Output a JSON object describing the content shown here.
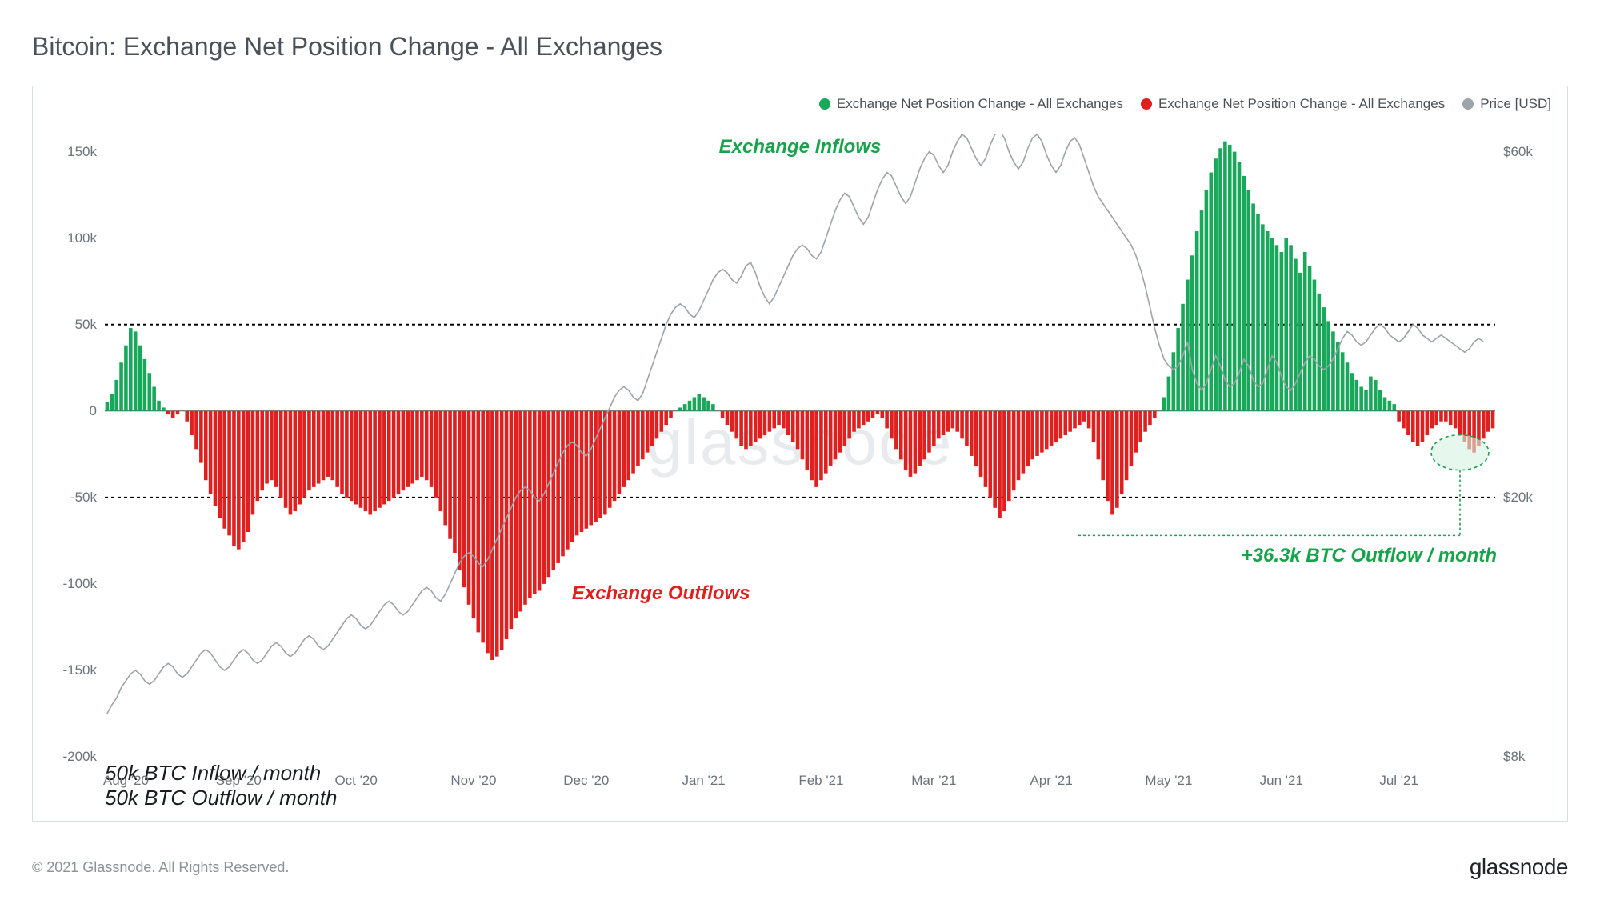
{
  "title": "Bitcoin: Exchange Net Position Change - All Exchanges",
  "copyright": "© 2021 Glassnode. All Rights Reserved.",
  "brand": "glassnode",
  "watermark": "glassnode",
  "legend": {
    "green": "Exchange Net Position Change - All Exchanges",
    "red": "Exchange Net Position Change - All Exchanges",
    "price": "Price [USD]"
  },
  "chart": {
    "type": "bar+line",
    "background_color": "#ffffff",
    "border_color": "#d8dde2",
    "bar_green": "#18a85a",
    "bar_red": "#e01f1f",
    "price_line_color": "#9ba3ab",
    "axis_text_color": "#6b737b",
    "dashed_line_color": "#000000",
    "left_axis": {
      "min": -200000,
      "max": 160000,
      "ticks": [
        {
          "v": -200000,
          "label": "-200k"
        },
        {
          "v": -150000,
          "label": "-150k"
        },
        {
          "v": -100000,
          "label": "-100k"
        },
        {
          "v": -50000,
          "label": "-50k"
        },
        {
          "v": 0,
          "label": "0"
        },
        {
          "v": 50000,
          "label": "50k"
        },
        {
          "v": 100000,
          "label": "100k"
        },
        {
          "v": 150000,
          "label": "150k"
        }
      ],
      "dashed_refs": [
        50000,
        -50000
      ]
    },
    "right_axis": {
      "ticks": [
        {
          "v": -200000,
          "label": "$8k"
        },
        {
          "v": -50000,
          "label": "$20k"
        },
        {
          "v": 150000,
          "label": "$60k"
        }
      ]
    },
    "x_labels": [
      "Aug '20",
      "Sep '20",
      "Oct '20",
      "Nov '20",
      "Dec '20",
      "Jan '21",
      "Feb '21",
      "Mar '21",
      "Apr '21",
      "May '21",
      "Jun '21",
      "Jul '21"
    ],
    "bars": [
      5,
      10,
      18,
      28,
      38,
      48,
      46,
      38,
      30,
      22,
      14,
      6,
      2,
      -2,
      -4,
      -2,
      0,
      -6,
      -14,
      -22,
      -30,
      -40,
      -48,
      -55,
      -62,
      -68,
      -72,
      -78,
      -80,
      -76,
      -70,
      -60,
      -52,
      -46,
      -42,
      -40,
      -44,
      -50,
      -56,
      -60,
      -58,
      -54,
      -50,
      -46,
      -44,
      -42,
      -40,
      -38,
      -40,
      -44,
      -48,
      -50,
      -52,
      -54,
      -56,
      -58,
      -60,
      -58,
      -56,
      -54,
      -52,
      -50,
      -48,
      -46,
      -44,
      -42,
      -40,
      -38,
      -40,
      -44,
      -50,
      -58,
      -66,
      -74,
      -82,
      -92,
      -102,
      -112,
      -120,
      -128,
      -134,
      -140,
      -144,
      -142,
      -138,
      -132,
      -126,
      -120,
      -116,
      -112,
      -108,
      -106,
      -104,
      -100,
      -96,
      -92,
      -88,
      -84,
      -80,
      -76,
      -72,
      -70,
      -68,
      -66,
      -64,
      -62,
      -60,
      -56,
      -52,
      -48,
      -44,
      -40,
      -36,
      -32,
      -28,
      -24,
      -20,
      -16,
      -12,
      -8,
      -4,
      0,
      2,
      4,
      6,
      8,
      10,
      8,
      6,
      4,
      0,
      -4,
      -8,
      -12,
      -16,
      -20,
      -22,
      -20,
      -18,
      -16,
      -14,
      -12,
      -10,
      -8,
      -10,
      -14,
      -18,
      -22,
      -28,
      -34,
      -40,
      -44,
      -40,
      -36,
      -32,
      -28,
      -24,
      -20,
      -16,
      -12,
      -10,
      -8,
      -6,
      -4,
      -2,
      -4,
      -10,
      -16,
      -22,
      -28,
      -34,
      -38,
      -36,
      -32,
      -28,
      -24,
      -20,
      -16,
      -14,
      -12,
      -10,
      -12,
      -16,
      -20,
      -26,
      -32,
      -38,
      -44,
      -50,
      -56,
      -62,
      -58,
      -52,
      -46,
      -40,
      -36,
      -32,
      -28,
      -26,
      -24,
      -22,
      -20,
      -18,
      -16,
      -14,
      -12,
      -10,
      -8,
      -6,
      -10,
      -18,
      -28,
      -40,
      -52,
      -60,
      -56,
      -48,
      -40,
      -32,
      -24,
      -18,
      -12,
      -8,
      -4,
      0,
      8,
      20,
      34,
      48,
      62,
      76,
      90,
      104,
      116,
      128,
      138,
      146,
      152,
      156,
      154,
      150,
      144,
      136,
      128,
      120,
      114,
      108,
      104,
      100,
      96,
      92,
      100,
      96,
      88,
      80,
      92,
      84,
      76,
      68,
      60,
      52,
      46,
      40,
      34,
      28,
      22,
      18,
      14,
      12,
      20,
      18,
      12,
      8,
      6,
      4,
      -6,
      -10,
      -14,
      -18,
      -20,
      -18,
      -14,
      -10,
      -8,
      -6,
      -6,
      -8,
      -10,
      -14,
      -18,
      -22,
      -24,
      -20,
      -16,
      -12,
      -10
    ],
    "price": [
      -175,
      -170,
      -166,
      -160,
      -156,
      -152,
      -150,
      -152,
      -156,
      -158,
      -156,
      -152,
      -148,
      -146,
      -148,
      -152,
      -154,
      -152,
      -148,
      -144,
      -140,
      -138,
      -140,
      -144,
      -148,
      -150,
      -148,
      -144,
      -140,
      -138,
      -140,
      -144,
      -146,
      -144,
      -140,
      -136,
      -134,
      -136,
      -140,
      -142,
      -140,
      -136,
      -132,
      -130,
      -132,
      -136,
      -138,
      -136,
      -132,
      -128,
      -124,
      -120,
      -118,
      -120,
      -124,
      -126,
      -124,
      -120,
      -116,
      -112,
      -110,
      -112,
      -116,
      -118,
      -116,
      -112,
      -108,
      -104,
      -102,
      -104,
      -108,
      -110,
      -106,
      -100,
      -94,
      -88,
      -84,
      -82,
      -84,
      -88,
      -90,
      -86,
      -80,
      -74,
      -68,
      -62,
      -56,
      -50,
      -46,
      -44,
      -46,
      -50,
      -52,
      -48,
      -42,
      -36,
      -30,
      -24,
      -20,
      -18,
      -20,
      -24,
      -26,
      -22,
      -16,
      -10,
      -4,
      2,
      8,
      12,
      14,
      12,
      8,
      6,
      10,
      18,
      26,
      34,
      42,
      50,
      56,
      60,
      62,
      60,
      56,
      54,
      58,
      64,
      70,
      76,
      80,
      82,
      80,
      76,
      74,
      78,
      84,
      86,
      80,
      72,
      66,
      62,
      66,
      72,
      78,
      84,
      90,
      94,
      96,
      94,
      90,
      88,
      92,
      100,
      108,
      116,
      122,
      126,
      124,
      118,
      112,
      108,
      112,
      120,
      128,
      134,
      138,
      136,
      130,
      124,
      120,
      124,
      132,
      140,
      146,
      150,
      148,
      142,
      138,
      142,
      150,
      156,
      160,
      158,
      152,
      146,
      142,
      146,
      154,
      160,
      162,
      158,
      150,
      144,
      140,
      144,
      152,
      158,
      160,
      156,
      148,
      142,
      138,
      142,
      150,
      156,
      158,
      154,
      146,
      138,
      130,
      124,
      120,
      116,
      112,
      108,
      104,
      100,
      96,
      90,
      82,
      72,
      60,
      48,
      38,
      30,
      26,
      24,
      26,
      32,
      40,
      24,
      16,
      12,
      16,
      24,
      32,
      26,
      18,
      14,
      16,
      22,
      30,
      26,
      18,
      14,
      16,
      24,
      32,
      28,
      20,
      14,
      12,
      16,
      22,
      28,
      32,
      30,
      26,
      24,
      26,
      30,
      36,
      42,
      46,
      44,
      40,
      38,
      40,
      44,
      48,
      50,
      48,
      44,
      42,
      40,
      42,
      46,
      50,
      48,
      44,
      42,
      40,
      42,
      44,
      42,
      40,
      38,
      36,
      34,
      36,
      40,
      42,
      40
    ]
  },
  "annotations": {
    "inflows_title": "Exchange Inflows",
    "outflows_title": "Exchange Outflows",
    "inflow_50k": "50k BTC Inflow / month",
    "outflow_50k": "50k BTC Outflow / month",
    "outflow_36k": "+36.3k BTC Outflow / month"
  }
}
